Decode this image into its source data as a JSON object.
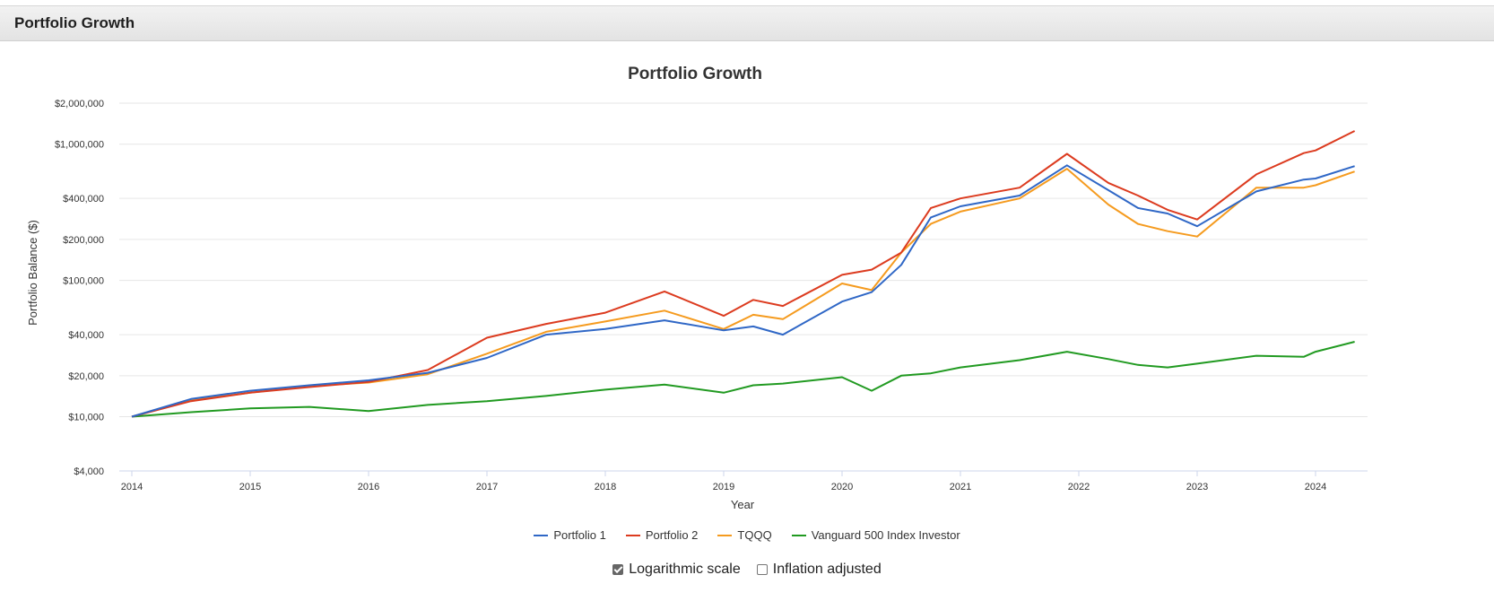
{
  "panel": {
    "title": "Portfolio Growth"
  },
  "chart_data": {
    "type": "line",
    "title": "Portfolio Growth",
    "xlabel": "Year",
    "ylabel": "Portfolio Balance ($)",
    "y_scale": "log",
    "ylim": [
      4000,
      2000000
    ],
    "xlim": [
      2014.0,
      2024.45
    ],
    "y_ticks": [
      4000,
      10000,
      20000,
      40000,
      100000,
      200000,
      400000,
      1000000,
      2000000
    ],
    "y_tick_labels": [
      "$4,000",
      "$10,000",
      "$20,000",
      "$40,000",
      "$100,000",
      "$200,000",
      "$400,000",
      "$1,000,000",
      "$2,000,000"
    ],
    "x_ticks": [
      2014,
      2015,
      2016,
      2017,
      2018,
      2019,
      2020,
      2021,
      2022,
      2023,
      2024
    ],
    "x_tick_labels": [
      "2014",
      "2015",
      "2016",
      "2017",
      "2018",
      "2019",
      "2020",
      "2021",
      "2022",
      "2023",
      "2024"
    ],
    "grid": "horizontal",
    "legend_position": "bottom",
    "x": [
      2014.0,
      2014.5,
      2015.0,
      2015.5,
      2016.0,
      2016.5,
      2017.0,
      2017.5,
      2018.0,
      2018.5,
      2019.0,
      2019.25,
      2019.5,
      2020.0,
      2020.25,
      2020.5,
      2020.75,
      2021.0,
      2021.5,
      2021.9,
      2022.25,
      2022.5,
      2022.75,
      2023.0,
      2023.5,
      2023.9,
      2024.0,
      2024.33
    ],
    "series": [
      {
        "name": "Portfolio 1",
        "color": "#2f67c6",
        "values": [
          10000,
          13500,
          15500,
          17000,
          18500,
          21000,
          27000,
          40000,
          44000,
          51000,
          43000,
          46000,
          40000,
          70000,
          82000,
          130000,
          290000,
          350000,
          420000,
          700000,
          460000,
          340000,
          310000,
          250000,
          450000,
          550000,
          560000,
          690000
        ]
      },
      {
        "name": "Portfolio 2",
        "color": "#dc3b1f",
        "values": [
          10000,
          13000,
          15000,
          16500,
          18000,
          22000,
          38000,
          48000,
          58000,
          83000,
          55000,
          72000,
          65000,
          110000,
          120000,
          160000,
          340000,
          400000,
          480000,
          850000,
          520000,
          420000,
          330000,
          280000,
          600000,
          860000,
          900000,
          1250000
        ]
      },
      {
        "name": "TQQQ",
        "color": "#f59b1f",
        "values": [
          10000,
          13200,
          15000,
          16800,
          17800,
          20500,
          29000,
          42000,
          50000,
          60000,
          44000,
          56000,
          52000,
          95000,
          85000,
          160000,
          260000,
          320000,
          400000,
          660000,
          360000,
          260000,
          230000,
          210000,
          480000,
          480000,
          500000,
          630000
        ]
      },
      {
        "name": "Vanguard 500 Index Investor",
        "color": "#219a21",
        "values": [
          10000,
          10800,
          11500,
          11800,
          11000,
          12200,
          13000,
          14200,
          15800,
          17200,
          15000,
          17000,
          17500,
          19500,
          15500,
          20000,
          20800,
          23000,
          26000,
          30000,
          26500,
          24000,
          23000,
          24500,
          28000,
          27500,
          30000,
          35500
        ]
      }
    ]
  },
  "options": {
    "log_scale_label": "Logarithmic scale",
    "log_scale_checked": true,
    "inflation_label": "Inflation adjusted",
    "inflation_checked": false
  }
}
